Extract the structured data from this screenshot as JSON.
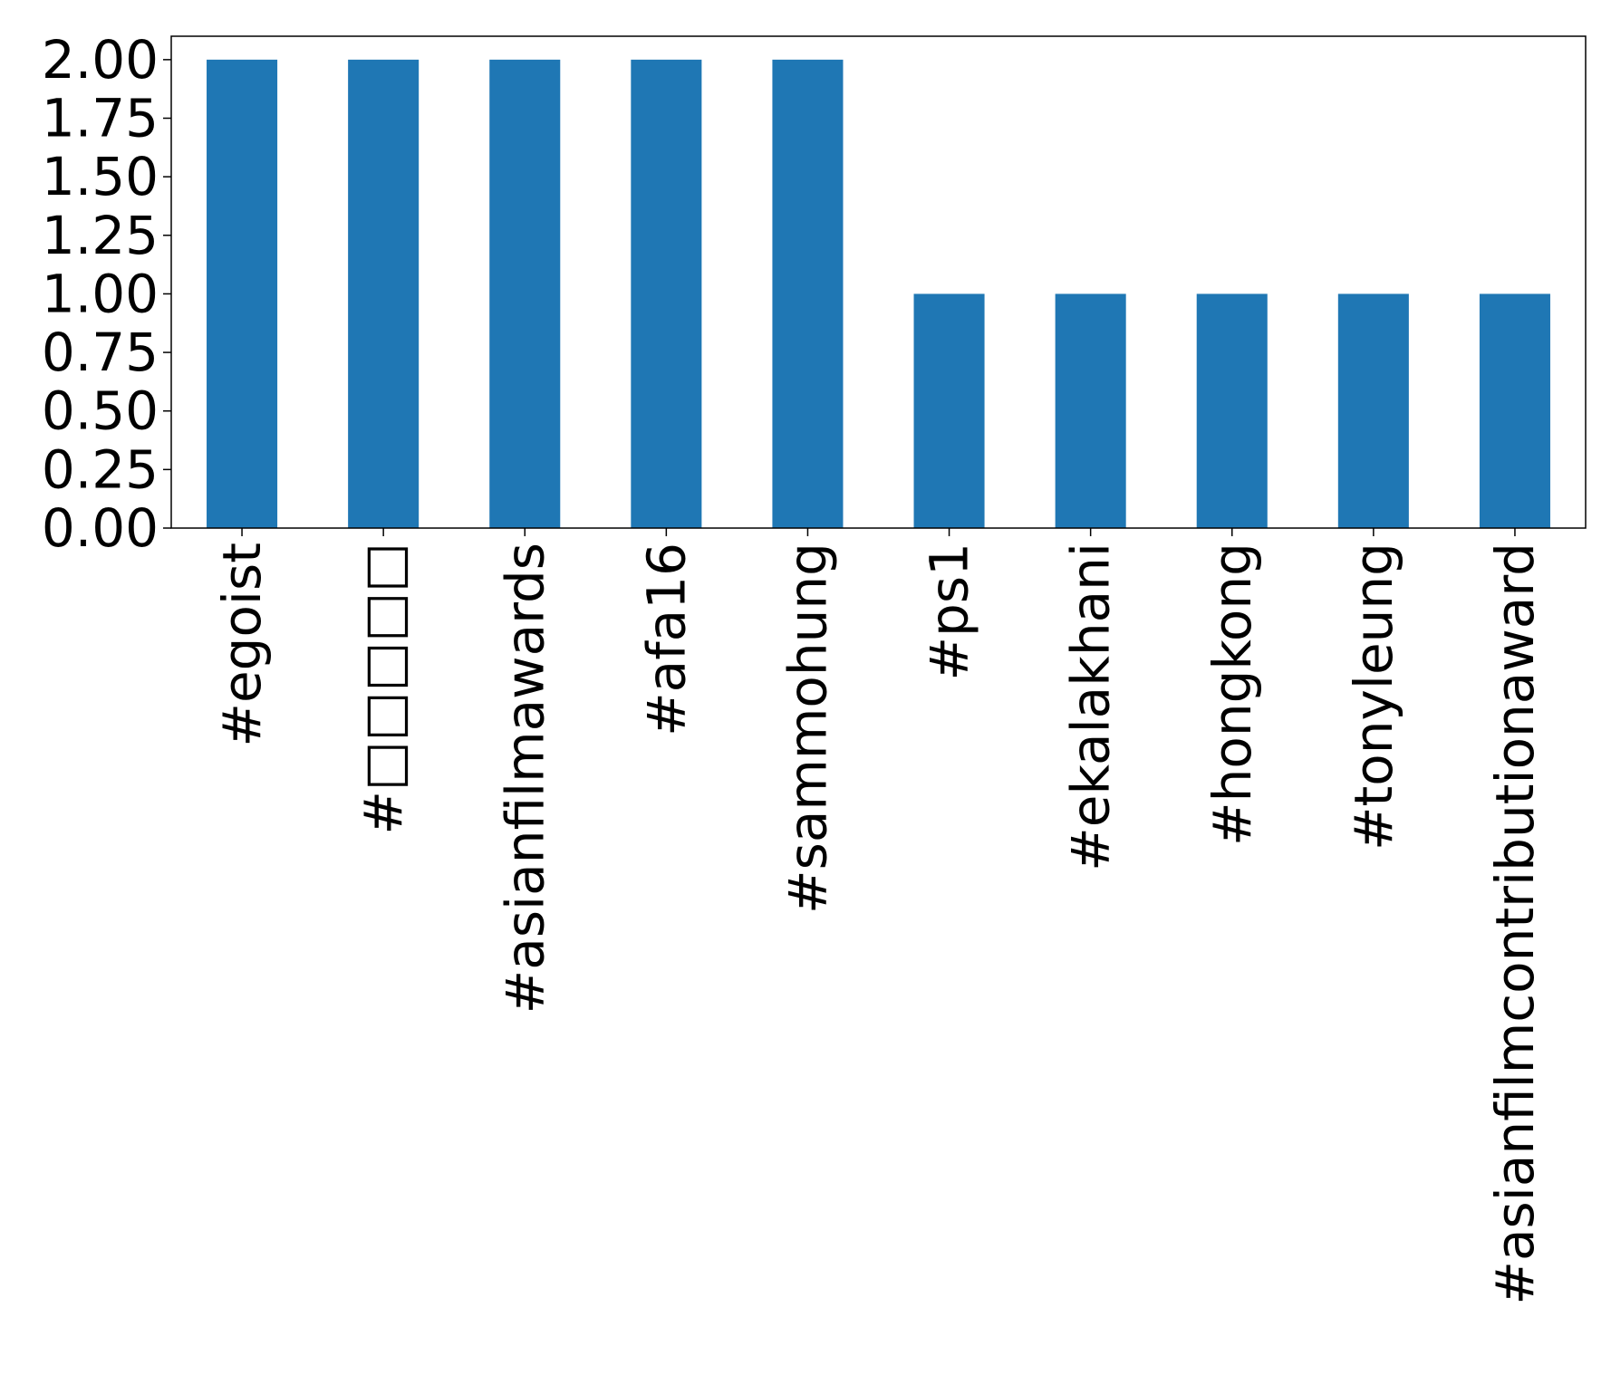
{
  "chart_data": {
    "type": "bar",
    "title": "",
    "xlabel": "",
    "ylabel": "",
    "categories": [
      "#egoist",
      "#□□□□□",
      "#asianfilmawards",
      "#afa16",
      "#sammohung",
      "#ps1",
      "#ekalakhani",
      "#hongkong",
      "#tonyleung",
      "#asianfilmcontributionaward"
    ],
    "values": [
      2,
      2,
      2,
      2,
      2,
      1,
      1,
      1,
      1,
      1
    ],
    "ylim": [
      0,
      2.1
    ],
    "yticks": [
      "0.00",
      "0.25",
      "0.50",
      "0.75",
      "1.00",
      "1.25",
      "1.50",
      "1.75",
      "2.00"
    ],
    "grid": false,
    "legend": "none",
    "colors": {
      "bar": "#1f77b4",
      "axis": "#000000",
      "background": "#ffffff"
    }
  }
}
